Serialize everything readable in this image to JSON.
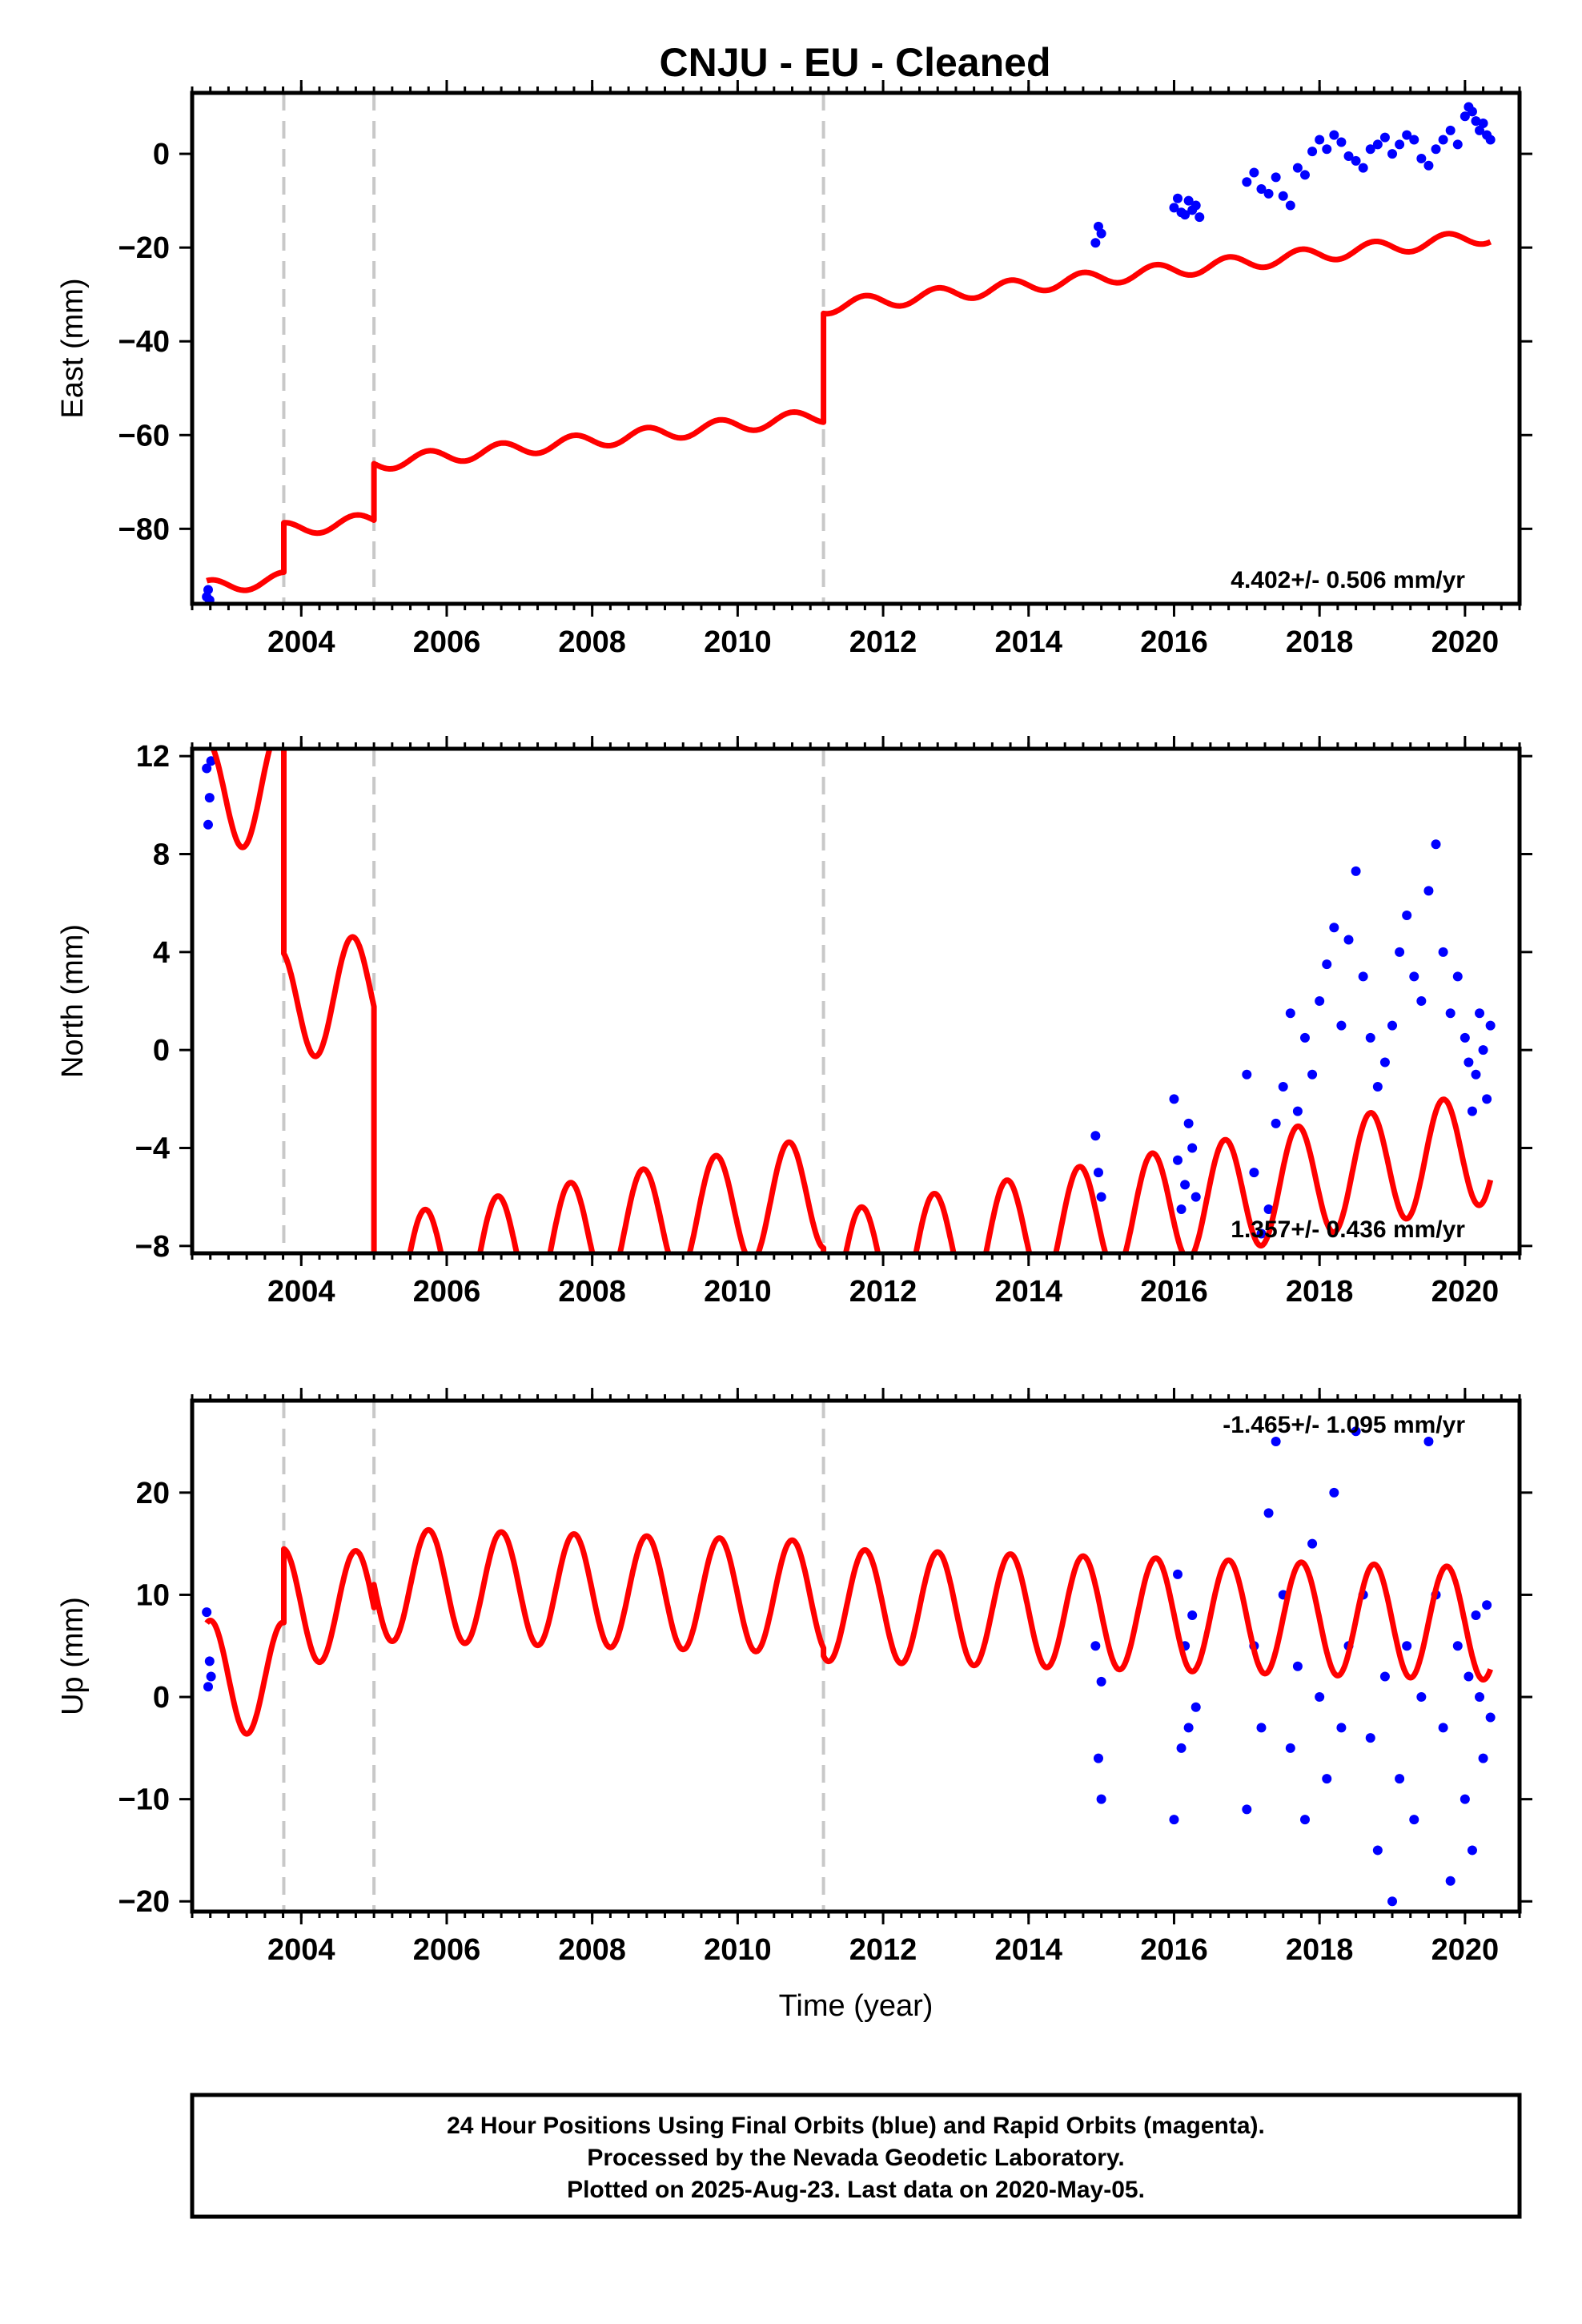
{
  "chart_data": [
    {
      "type": "scatter",
      "title": "CNJU  - EU - Cleaned",
      "xlabel": "",
      "ylabel": "East (mm)",
      "xlim": [
        2002.5,
        2020.75
      ],
      "ylim": [
        -96,
        13
      ],
      "xticks": [
        2004,
        2006,
        2008,
        2010,
        2012,
        2014,
        2016,
        2018,
        2020
      ],
      "xtick_labels": [
        "2004",
        "2006",
        "2008",
        "2010",
        "2012",
        "2014",
        "2016",
        "2018",
        "2020"
      ],
      "yticks": [
        0,
        -20,
        -40,
        -60,
        -80
      ],
      "ytick_labels": [
        "0",
        "−20",
        "−40",
        "−60",
        "−80"
      ],
      "rate_text": "4.402+/- 0.506 mm/yr",
      "rate_position": "bottom-right",
      "grid": false,
      "offset_lines": [
        2003.76,
        2005.0,
        2011.18
      ],
      "colors": {
        "data": "#0000ff",
        "model": "#ff0000",
        "offsets": "#c8c8c8"
      },
      "model": {
        "interval_starts": [
          2002.7,
          2003.76,
          2005.0,
          2011.18
        ],
        "interval_offsets": [
          -92.5,
          -80.2,
          -66.1,
          -32.7
        ],
        "rate": 1.65,
        "seasonal_amplitude": 1.5,
        "seasonal_phase": 0.5,
        "end": 2020.35
      },
      "series": [
        {
          "name": "Final Orbits",
          "color": "#0000ff",
          "x": [
            2002.7,
            2002.72,
            2002.74,
            2014.92,
            2014.96,
            2015.0,
            2016.0,
            2016.05,
            2016.1,
            2016.15,
            2016.2,
            2016.25,
            2016.3,
            2016.35,
            2017.0,
            2017.1,
            2017.2,
            2017.3,
            2017.4,
            2017.5,
            2017.6,
            2017.7,
            2017.8,
            2017.9,
            2018.0,
            2018.1,
            2018.2,
            2018.3,
            2018.4,
            2018.5,
            2018.6,
            2018.7,
            2018.8,
            2018.9,
            2019.0,
            2019.1,
            2019.2,
            2019.3,
            2019.4,
            2019.5,
            2019.6,
            2019.7,
            2019.8,
            2019.9,
            2020.0,
            2020.05,
            2020.1,
            2020.15,
            2020.2,
            2020.25,
            2020.3,
            2020.35
          ],
          "y": [
            -94.5,
            -93.0,
            -95.2,
            -19.0,
            -15.5,
            -17.0,
            -11.5,
            -9.5,
            -12.5,
            -13.0,
            -10.0,
            -12.0,
            -11.0,
            -13.5,
            -6.0,
            -4.0,
            -7.5,
            -8.5,
            -5.0,
            -9.0,
            -11.0,
            -3.0,
            -4.5,
            0.5,
            3.0,
            1.0,
            4.0,
            2.5,
            -0.5,
            -1.5,
            -3.0,
            1.0,
            2.0,
            3.5,
            0.0,
            2.0,
            4.0,
            3.0,
            -1.0,
            -2.5,
            1.0,
            3.0,
            5.0,
            2.0,
            8.0,
            10.0,
            9.0,
            7.0,
            5.0,
            6.5,
            4.0,
            3.0
          ]
        }
      ]
    },
    {
      "type": "scatter",
      "title": "",
      "xlabel": "",
      "ylabel": "North (mm)",
      "xlim": [
        2002.5,
        2020.75
      ],
      "ylim": [
        -8.3,
        12.3
      ],
      "xticks": [
        2004,
        2006,
        2008,
        2010,
        2012,
        2014,
        2016,
        2018,
        2020
      ],
      "xtick_labels": [
        "2004",
        "2006",
        "2008",
        "2010",
        "2012",
        "2014",
        "2016",
        "2018",
        "2020"
      ],
      "yticks": [
        12,
        8,
        4,
        0,
        -4,
        -8
      ],
      "ytick_labels": [
        "12",
        "8",
        "4",
        "0",
        "−4",
        "−8"
      ],
      "rate_text": "1.357+/- 0.436 mm/yr",
      "rate_position": "bottom-right",
      "grid": false,
      "offset_lines": [
        2003.76,
        2005.0,
        2011.18
      ],
      "colors": {
        "data": "#0000ff",
        "model": "#ff0000",
        "offsets": "#c8c8c8"
      },
      "model": {
        "interval_starts": [
          2002.7,
          2003.76,
          2005.0,
          2011.18
        ],
        "interval_offsets": [
          10.3,
          1.8,
          -9.2,
          -9.0
        ],
        "rate": 0.55,
        "seasonal_amplitude": 2.3,
        "seasonal_phase": 0.45,
        "end": 2020.35
      },
      "series": [
        {
          "name": "Final Orbits",
          "color": "#0000ff",
          "x": [
            2002.7,
            2002.72,
            2002.74,
            2002.76,
            2014.92,
            2014.96,
            2015.0,
            2016.0,
            2016.05,
            2016.1,
            2016.15,
            2016.2,
            2016.25,
            2016.3,
            2017.0,
            2017.1,
            2017.2,
            2017.3,
            2017.4,
            2017.5,
            2017.6,
            2017.7,
            2017.8,
            2017.9,
            2018.0,
            2018.1,
            2018.2,
            2018.3,
            2018.4,
            2018.5,
            2018.6,
            2018.7,
            2018.8,
            2018.9,
            2019.0,
            2019.1,
            2019.2,
            2019.3,
            2019.4,
            2019.5,
            2019.6,
            2019.7,
            2019.8,
            2019.9,
            2020.0,
            2020.05,
            2020.1,
            2020.15,
            2020.2,
            2020.25,
            2020.3,
            2020.35
          ],
          "y": [
            11.5,
            9.2,
            10.3,
            11.8,
            -3.5,
            -5.0,
            -6.0,
            -2.0,
            -4.5,
            -6.5,
            -5.5,
            -3.0,
            -4.0,
            -6.0,
            -1.0,
            -5.0,
            -7.5,
            -6.5,
            -3.0,
            -1.5,
            1.5,
            -2.5,
            0.5,
            -1.0,
            2.0,
            3.5,
            5.0,
            1.0,
            4.5,
            7.3,
            3.0,
            0.5,
            -1.5,
            -0.5,
            1.0,
            4.0,
            5.5,
            3.0,
            2.0,
            6.5,
            8.4,
            4.0,
            1.5,
            3.0,
            0.5,
            -0.5,
            -2.5,
            -1.0,
            1.5,
            0.0,
            -2.0,
            1.0
          ]
        }
      ]
    },
    {
      "type": "scatter",
      "title": "",
      "xlabel": "Time (year)",
      "ylabel": "Up (mm)",
      "xlim": [
        2002.5,
        2020.75
      ],
      "ylim": [
        -21,
        29
      ],
      "xticks": [
        2004,
        2006,
        2008,
        2010,
        2012,
        2014,
        2016,
        2018,
        2020
      ],
      "xtick_labels": [
        "2004",
        "2006",
        "2008",
        "2010",
        "2012",
        "2014",
        "2016",
        "2018",
        "2020"
      ],
      "yticks": [
        20,
        10,
        0,
        -10,
        -20
      ],
      "ytick_labels": [
        "20",
        "10",
        "0",
        "−10",
        "−20"
      ],
      "rate_text": "-1.465+/- 1.095 mm/yr",
      "rate_position": "top-right",
      "grid": false,
      "offset_lines": [
        2003.76,
        2005.0,
        2011.18
      ],
      "colors": {
        "data": "#0000ff",
        "model": "#ff0000",
        "offsets": "#c8c8c8"
      },
      "model": {
        "interval_starts": [
          2002.7,
          2003.76,
          2005.0,
          2011.18
        ],
        "interval_offsets": [
          2.0,
          9.0,
          11.0,
          9.0
        ],
        "rate": -0.2,
        "seasonal_amplitude": 5.5,
        "seasonal_phase": 0.5,
        "end": 2020.35
      },
      "series": [
        {
          "name": "Final Orbits",
          "color": "#0000ff",
          "x": [
            2002.7,
            2002.72,
            2002.74,
            2002.76,
            2014.92,
            2014.96,
            2015.0,
            2015.0,
            2016.0,
            2016.05,
            2016.1,
            2016.15,
            2016.2,
            2016.25,
            2016.3,
            2017.0,
            2017.1,
            2017.2,
            2017.3,
            2017.4,
            2017.5,
            2017.6,
            2017.7,
            2017.8,
            2017.9,
            2018.0,
            2018.1,
            2018.2,
            2018.3,
            2018.4,
            2018.5,
            2018.6,
            2018.7,
            2018.8,
            2018.9,
            2019.0,
            2019.1,
            2019.2,
            2019.3,
            2019.4,
            2019.5,
            2019.6,
            2019.7,
            2019.8,
            2019.9,
            2020.0,
            2020.05,
            2020.1,
            2020.15,
            2020.2,
            2020.25,
            2020.3,
            2020.35
          ],
          "y": [
            8.3,
            1.0,
            3.5,
            2.0,
            5.0,
            -6.0,
            -10.0,
            1.5,
            -12.0,
            12.0,
            -5.0,
            5.0,
            -3.0,
            8.0,
            -1.0,
            -11.0,
            5.0,
            -3.0,
            18.0,
            25.0,
            10.0,
            -5.0,
            3.0,
            -12.0,
            15.0,
            0.0,
            -8.0,
            20.0,
            -3.0,
            5.0,
            26.0,
            10.0,
            -4.0,
            -15.0,
            2.0,
            -20.0,
            -8.0,
            5.0,
            -12.0,
            0.0,
            25.0,
            10.0,
            -3.0,
            -18.0,
            5.0,
            -10.0,
            2.0,
            -15.0,
            8.0,
            0.0,
            -6.0,
            9.0,
            -2.0
          ]
        }
      ]
    }
  ],
  "footer": {
    "line1": "24 Hour Positions Using Final Orbits (blue) and Rapid Orbits (magenta).",
    "line2": "Processed by the Nevada Geodetic Laboratory.",
    "line3": "Plotted on 2025-Aug-23. Last data on 2020-May-05."
  }
}
